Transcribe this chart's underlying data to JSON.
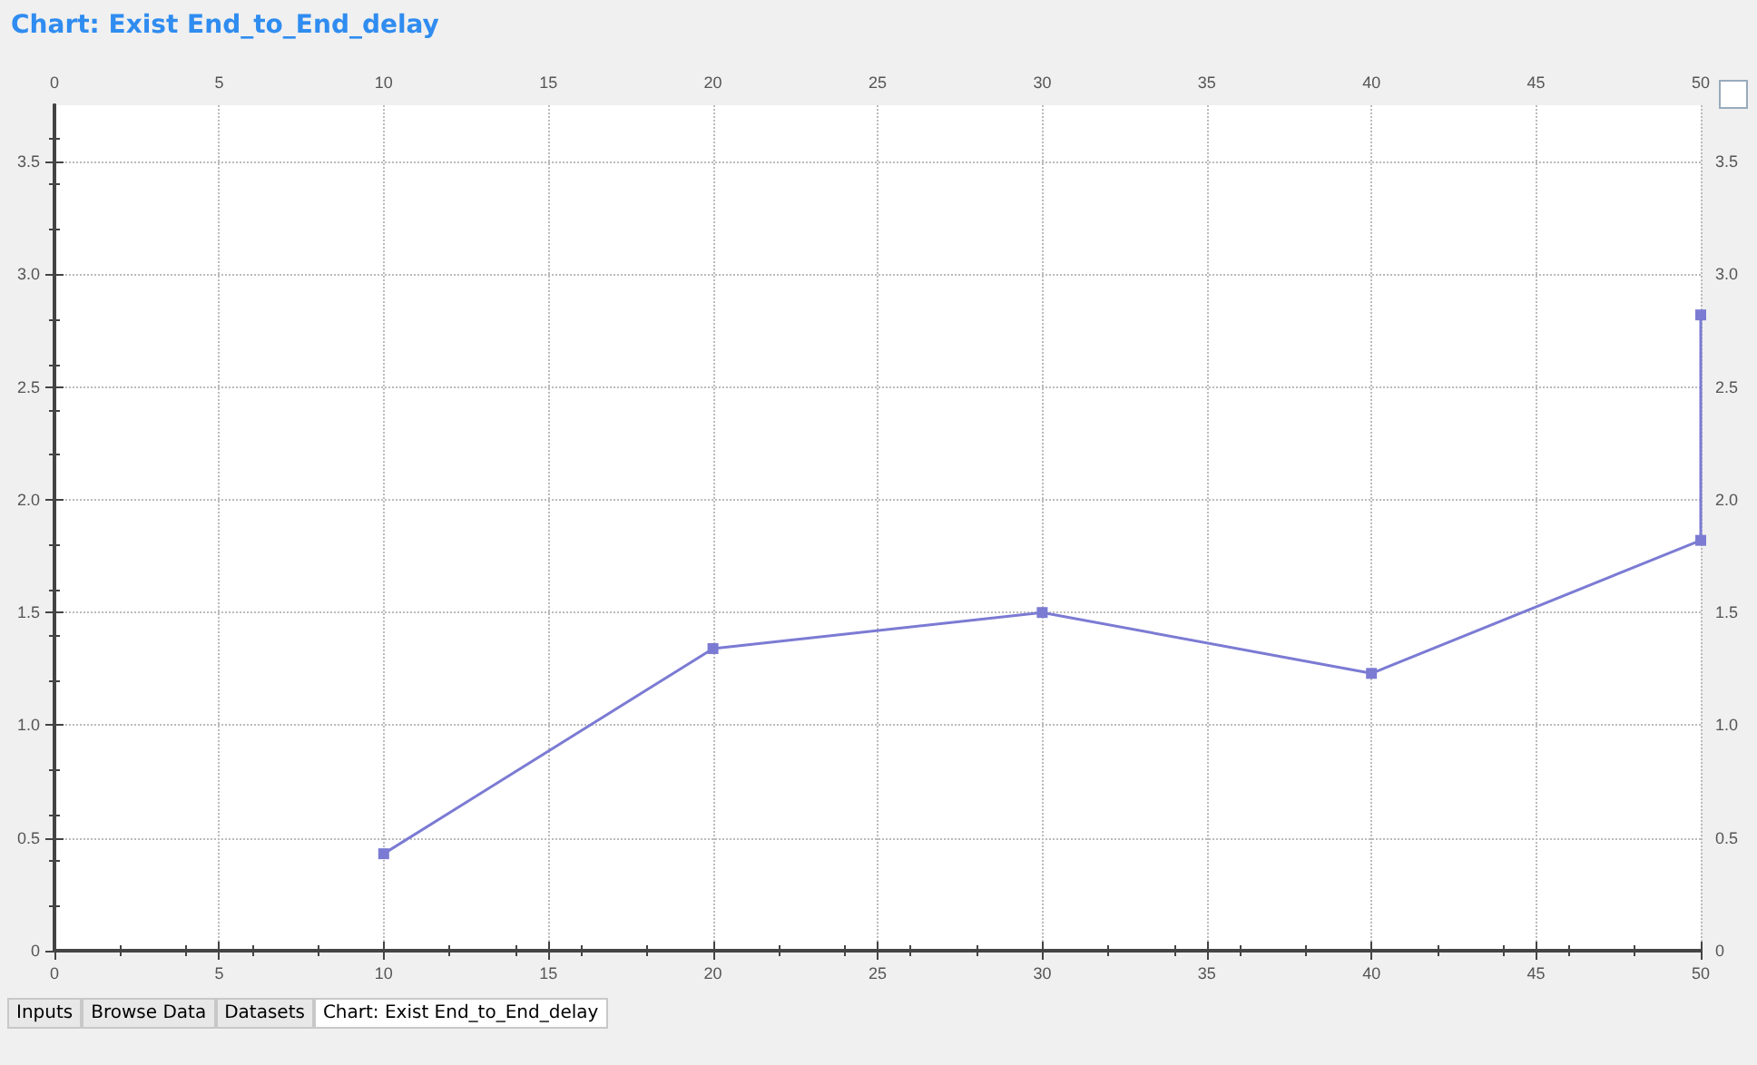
{
  "chart_data": {
    "type": "line",
    "title": "Chart: Exist End_to_End_delay",
    "x": [
      10,
      20,
      30,
      40,
      50,
      50
    ],
    "series": [
      {
        "color": "#7b7bd4",
        "values": [
          0.43,
          1.34,
          1.5,
          1.23,
          1.82,
          2.82
        ]
      }
    ],
    "xlim": [
      0,
      50
    ],
    "xticks": [
      0,
      5,
      10,
      15,
      20,
      25,
      30,
      35,
      40,
      45,
      50
    ],
    "x2lim": [
      0,
      50
    ],
    "x2ticks": [
      0,
      5,
      10,
      15,
      20,
      25,
      30,
      35,
      40,
      45,
      50
    ],
    "ylim": [
      0,
      3.75
    ],
    "yticks": [
      0,
      0.5,
      {
        "value": 1,
        "label": "1.0"
      },
      1.5,
      {
        "value": 2,
        "label": "2.0"
      },
      2.5,
      {
        "value": 3,
        "label": "3.0"
      },
      3.5
    ],
    "y2lim": [
      0,
      3.75
    ],
    "y2ticks": [
      0,
      0.5,
      {
        "value": 1,
        "label": "1.0"
      },
      1.5,
      {
        "value": 2,
        "label": "2.0"
      },
      2.5,
      {
        "value": 3,
        "label": "3.0"
      },
      3.5
    ],
    "grid": true,
    "marker": "square",
    "line_style": "solid",
    "annotations": [
      "Inputs",
      "Browse Data",
      "Datasets",
      "Chart: Exist End_to_End_delay"
    ]
  }
}
